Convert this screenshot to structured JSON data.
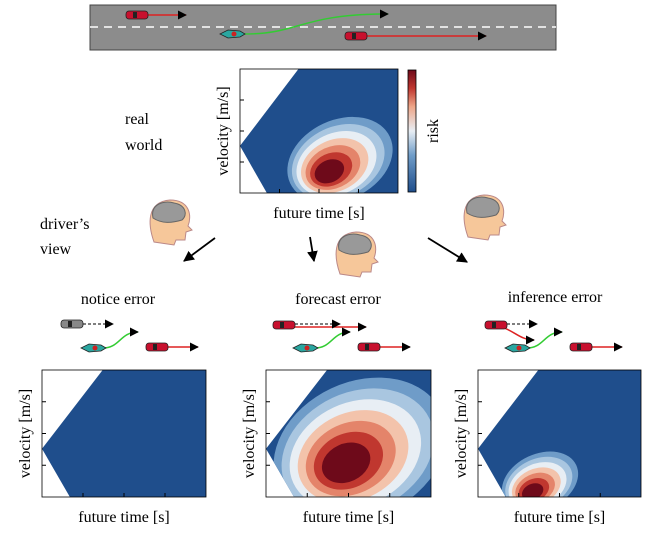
{
  "top_panel": {
    "label": [
      "real",
      "world"
    ],
    "ylabel": "velocity [m/s]",
    "xlabel": "future time [s]",
    "colorbar_label": "risk"
  },
  "driver_label": [
    "driver’s",
    "view"
  ],
  "panels": [
    {
      "title": "notice error",
      "ylabel": "velocity [m/s]",
      "xlabel": "future time [s]"
    },
    {
      "title": "forecast error",
      "ylabel": "velocity [m/s]",
      "xlabel": "future time [s]"
    },
    {
      "title": "inference error",
      "ylabel": "velocity [m/s]",
      "xlabel": "future time [s]"
    }
  ]
}
